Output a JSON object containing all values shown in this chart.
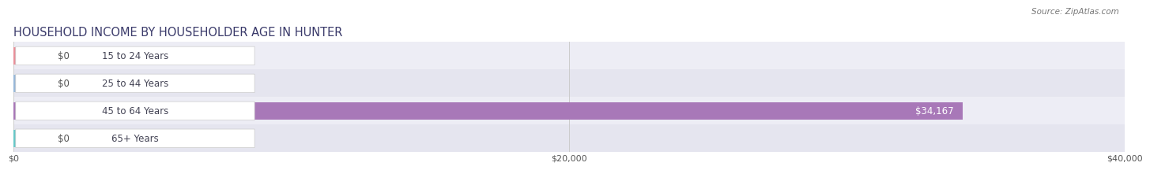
{
  "title": "HOUSEHOLD INCOME BY HOUSEHOLDER AGE IN HUNTER",
  "source": "Source: ZipAtlas.com",
  "categories": [
    "15 to 24 Years",
    "25 to 44 Years",
    "45 to 64 Years",
    "65+ Years"
  ],
  "values": [
    0,
    0,
    34167,
    0
  ],
  "bar_colors": [
    "#e8909a",
    "#98b8d8",
    "#a878b8",
    "#68c8c8"
  ],
  "row_bg_colors": [
    "#ededf5",
    "#e5e5ef",
    "#ededf5",
    "#e5e5ef"
  ],
  "xlim": [
    0,
    40000
  ],
  "xticks": [
    0,
    20000,
    40000
  ],
  "xticklabels": [
    "$0",
    "$20,000",
    "$40,000"
  ],
  "bar_height": 0.62,
  "title_fontsize": 10.5,
  "source_fontsize": 7.5,
  "label_fontsize": 8.5,
  "tick_fontsize": 8,
  "value_color_inside": "#ffffff",
  "value_color_outside": "#555555",
  "background_color": "#ffffff",
  "label_pill_color": "#ffffff",
  "label_text_color": "#444455",
  "grid_color": "#cccccc",
  "title_color": "#3a3a6a"
}
